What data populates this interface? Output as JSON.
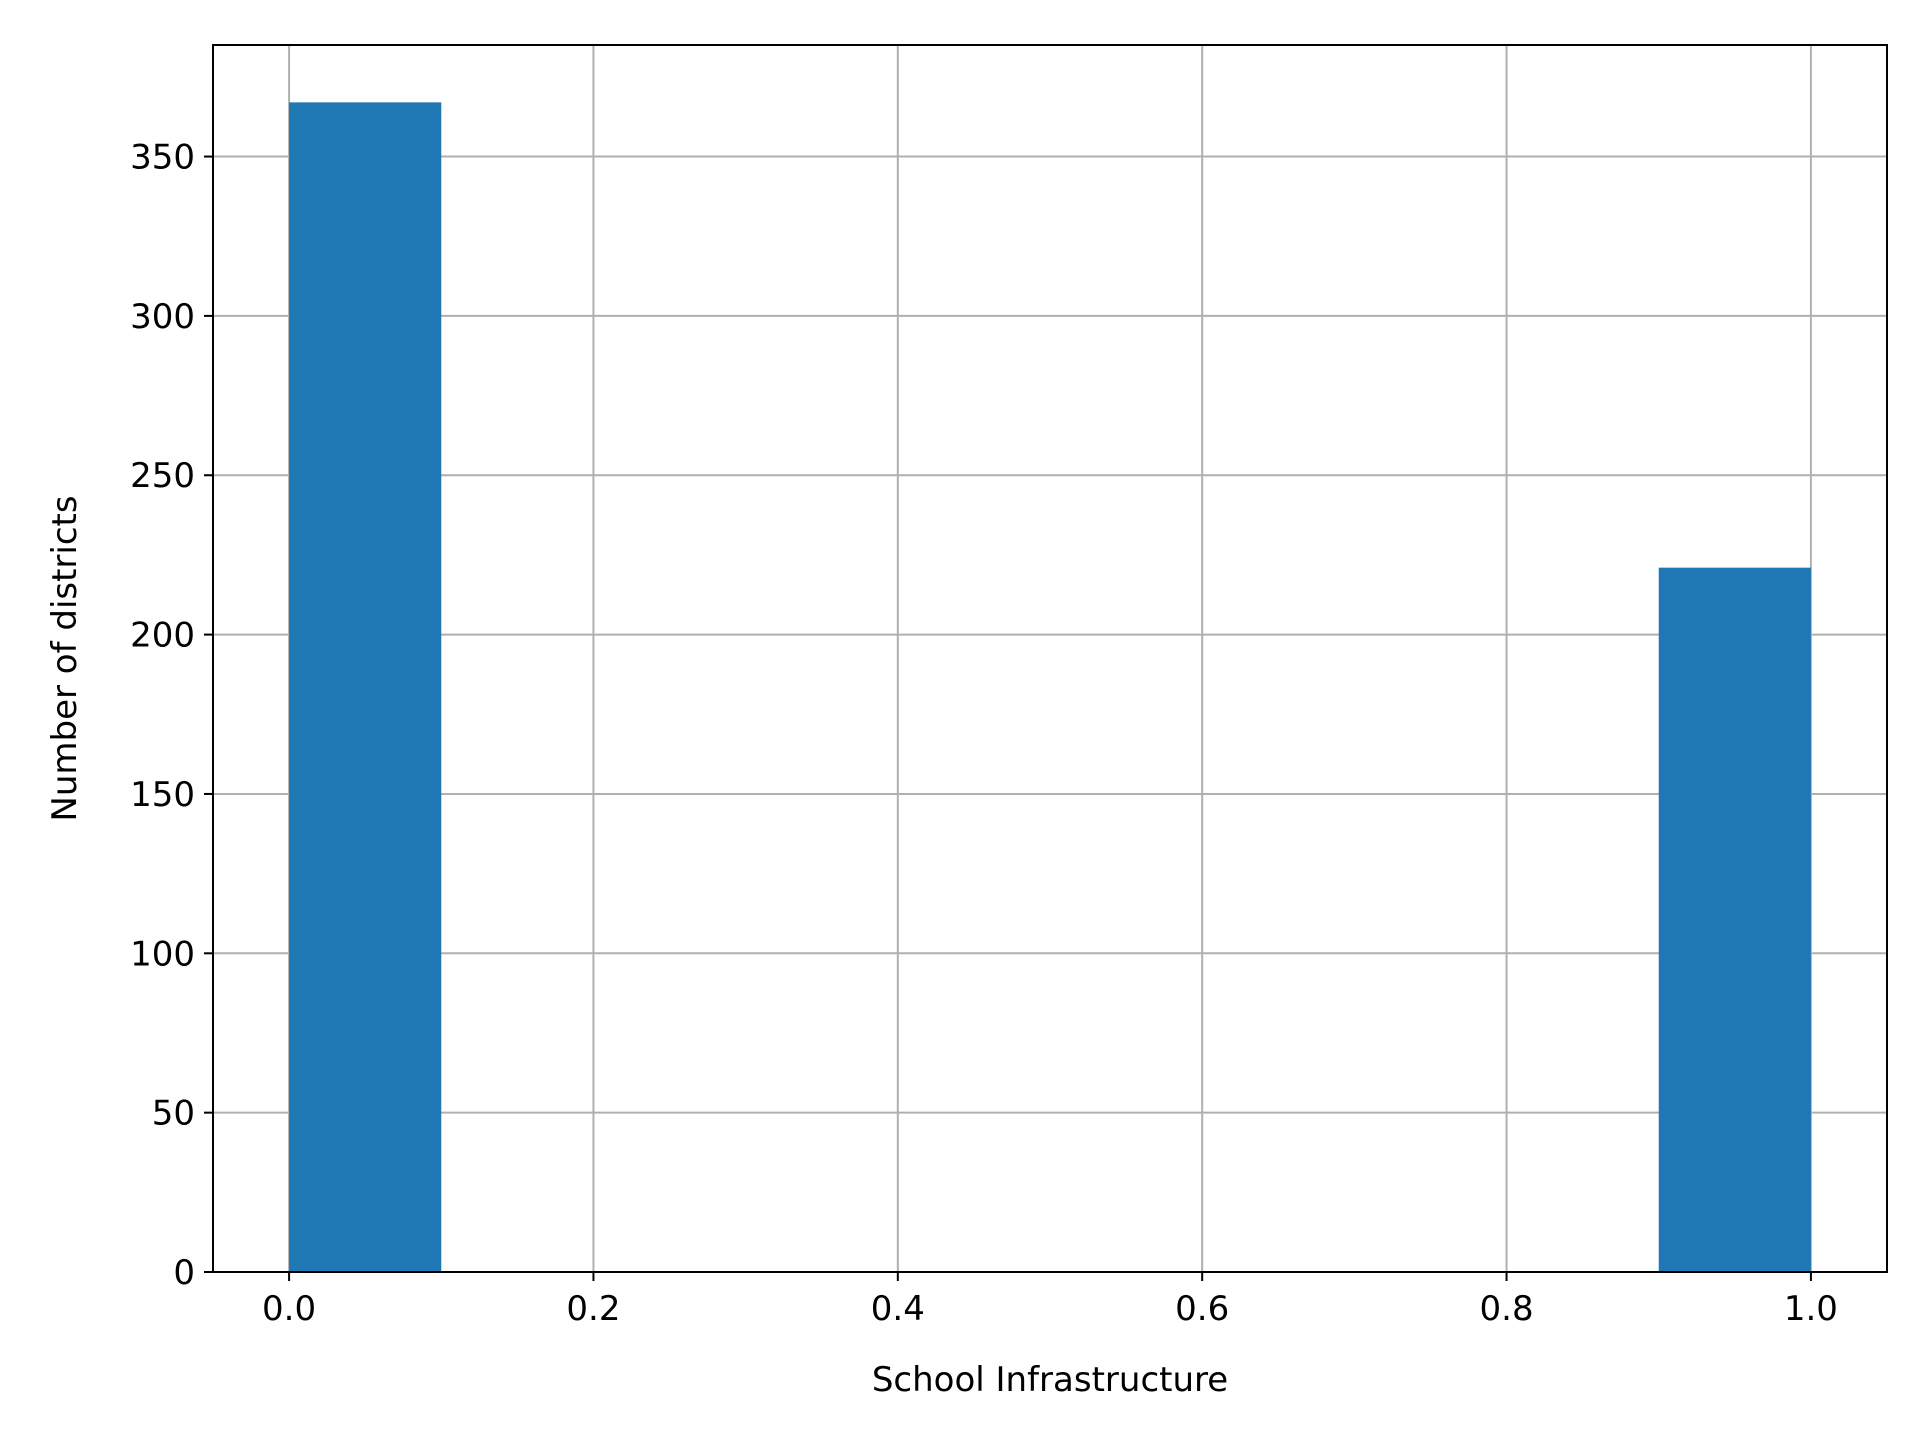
{
  "chart_data": {
    "type": "bar",
    "title": "",
    "xlabel": "School Infrastructure",
    "ylabel": "Number of districts",
    "xlim": [
      -0.05,
      1.05
    ],
    "ylim": [
      0,
      385
    ],
    "x_ticks": [
      0.0,
      0.2,
      0.4,
      0.6,
      0.8,
      1.0
    ],
    "x_tick_labels": [
      "0.0",
      "0.2",
      "0.4",
      "0.6",
      "0.8",
      "1.0"
    ],
    "y_ticks": [
      0,
      50,
      100,
      150,
      200,
      250,
      300,
      350
    ],
    "y_tick_labels": [
      "0",
      "50",
      "100",
      "150",
      "200",
      "250",
      "300",
      "350"
    ],
    "bins": [
      {
        "start": 0.0,
        "end": 0.1,
        "value": 367
      },
      {
        "start": 0.1,
        "end": 0.2,
        "value": 0
      },
      {
        "start": 0.2,
        "end": 0.3,
        "value": 0
      },
      {
        "start": 0.3,
        "end": 0.4,
        "value": 0
      },
      {
        "start": 0.4,
        "end": 0.5,
        "value": 0
      },
      {
        "start": 0.5,
        "end": 0.6,
        "value": 0
      },
      {
        "start": 0.6,
        "end": 0.7,
        "value": 0
      },
      {
        "start": 0.7,
        "end": 0.8,
        "value": 0
      },
      {
        "start": 0.8,
        "end": 0.9,
        "value": 0
      },
      {
        "start": 0.9,
        "end": 1.0,
        "value": 221
      }
    ],
    "grid": true,
    "legend": "none",
    "bar_color": "#1f77b4",
    "grid_color": "#b0b0b0"
  }
}
